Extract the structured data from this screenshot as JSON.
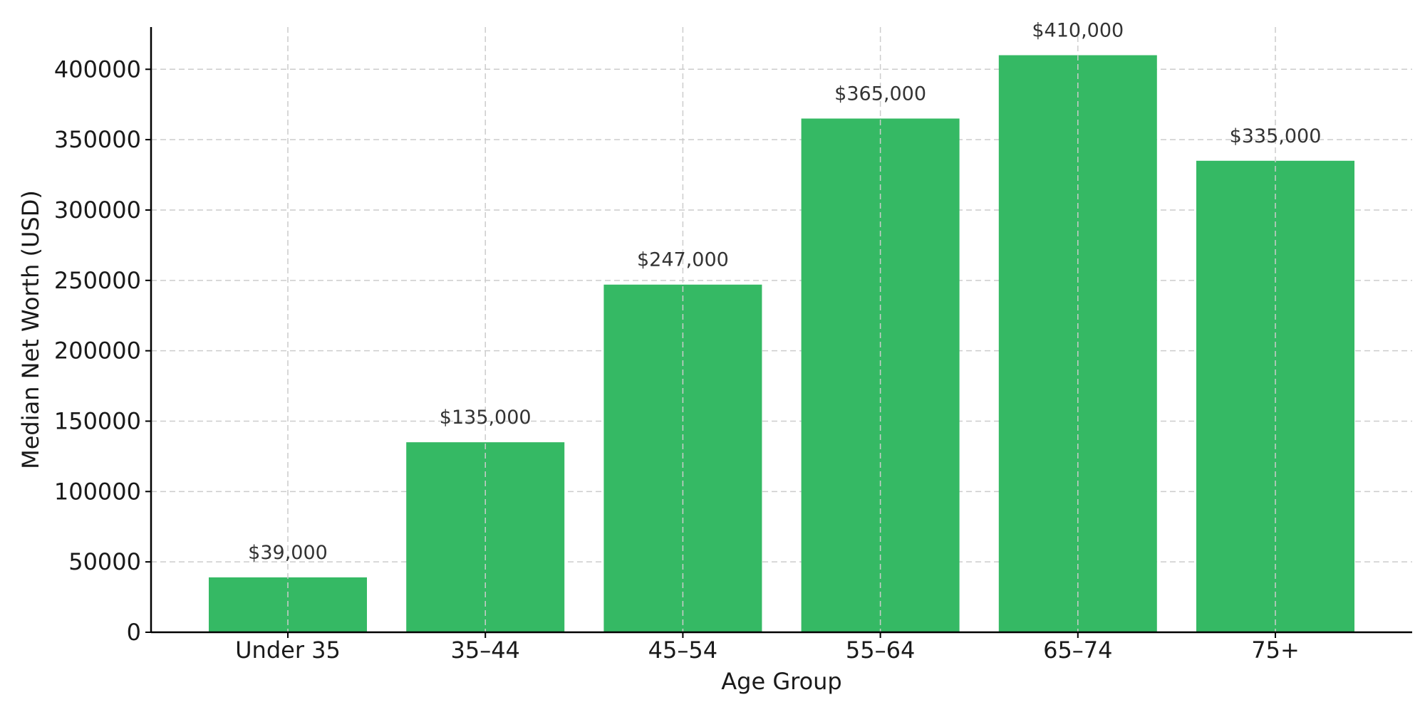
{
  "chart_data": {
    "type": "bar",
    "title": "",
    "xlabel": "Age Group",
    "ylabel": "Median Net Worth (USD)",
    "categories": [
      "Under 35",
      "35–44",
      "45–54",
      "55–64",
      "65–74",
      "75+"
    ],
    "values": [
      39000,
      135000,
      247000,
      365000,
      410000,
      335000
    ],
    "value_labels": [
      "$39,000",
      "$135,000",
      "$247,000",
      "$365,000",
      "$410,000",
      "$335,000"
    ],
    "ylim": [
      0,
      430000
    ],
    "yticks": [
      0,
      50000,
      100000,
      150000,
      200000,
      250000,
      300000,
      350000,
      400000
    ],
    "ytick_labels": [
      "0",
      "50000",
      "100000",
      "150000",
      "200000",
      "250000",
      "300000",
      "350000",
      "400000"
    ],
    "grid": true,
    "legend": "none",
    "bar_color": "#35b964"
  }
}
